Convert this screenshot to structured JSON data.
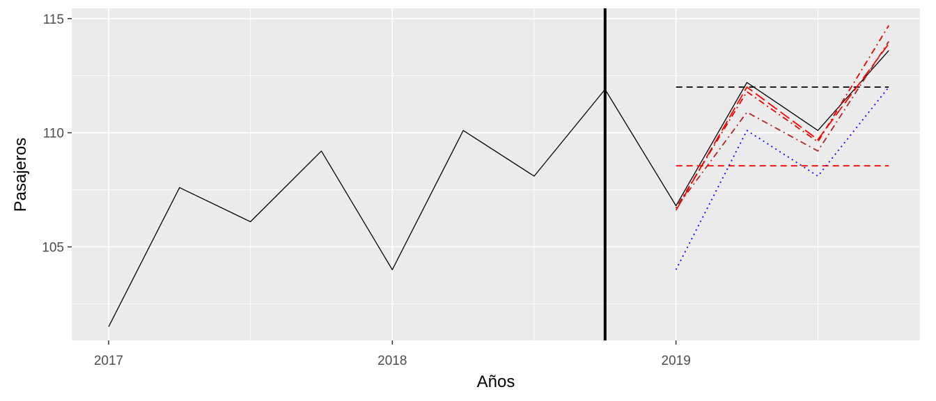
{
  "chart_data": {
    "type": "line",
    "xlabel": "Años",
    "ylabel": "Pasajeros",
    "xlim": [
      2016.87,
      2019.86
    ],
    "ylim": [
      100.9,
      115.45
    ],
    "x_ticks": [
      2017,
      2018,
      2019
    ],
    "x_tick_labels": [
      "2017",
      "2018",
      "2019"
    ],
    "y_ticks": [
      105,
      110,
      115
    ],
    "y_tick_labels": [
      "105",
      "110",
      "115"
    ],
    "grid": true,
    "background": "#EBEBEB",
    "grid_color": "#FFFFFF",
    "vertical_line": {
      "x": 2018.75,
      "color": "#000000"
    },
    "series": [
      {
        "color": "#000000",
        "dash": "solid",
        "x": [
          2017.0,
          2017.25,
          2017.5,
          2017.75,
          2018.0,
          2018.25,
          2018.5,
          2018.75,
          2019.0,
          2019.25,
          2019.5,
          2019.75
        ],
        "y": [
          101.5,
          107.6,
          106.1,
          109.2,
          104.0,
          110.1,
          108.1,
          111.9,
          106.8,
          112.2,
          110.1,
          113.6
        ]
      },
      {
        "color": "#000000",
        "dash": "dashed",
        "x": [
          2019.0,
          2019.25,
          2019.5,
          2019.75
        ],
        "y": [
          112.0,
          112.0,
          112.0,
          112.0
        ]
      },
      {
        "color": "#FF0000",
        "dash": "dashed",
        "x": [
          2019.0,
          2019.25,
          2019.5,
          2019.75
        ],
        "y": [
          108.55,
          108.55,
          108.55,
          108.55
        ]
      },
      {
        "color": "#0000FF",
        "dash": "dotted",
        "x": [
          2019.0,
          2019.25,
          2019.5,
          2019.75
        ],
        "y": [
          104.0,
          110.1,
          108.1,
          112.0
        ]
      },
      {
        "color": "#FF0000",
        "dash": "longdash",
        "x": [
          2019.0,
          2019.25,
          2019.5,
          2019.75
        ],
        "y": [
          106.6,
          112.0,
          109.7,
          113.9
        ]
      },
      {
        "color": "#E00000",
        "dash": "dotdash",
        "x": [
          2019.0,
          2019.25,
          2019.5,
          2019.75
        ],
        "y": [
          106.7,
          111.8,
          109.6,
          114.7
        ]
      },
      {
        "color": "#B22222",
        "dash": "dotdash",
        "x": [
          2019.0,
          2019.25,
          2019.5,
          2019.75
        ],
        "y": [
          106.7,
          110.9,
          109.2,
          114.0
        ]
      }
    ]
  }
}
